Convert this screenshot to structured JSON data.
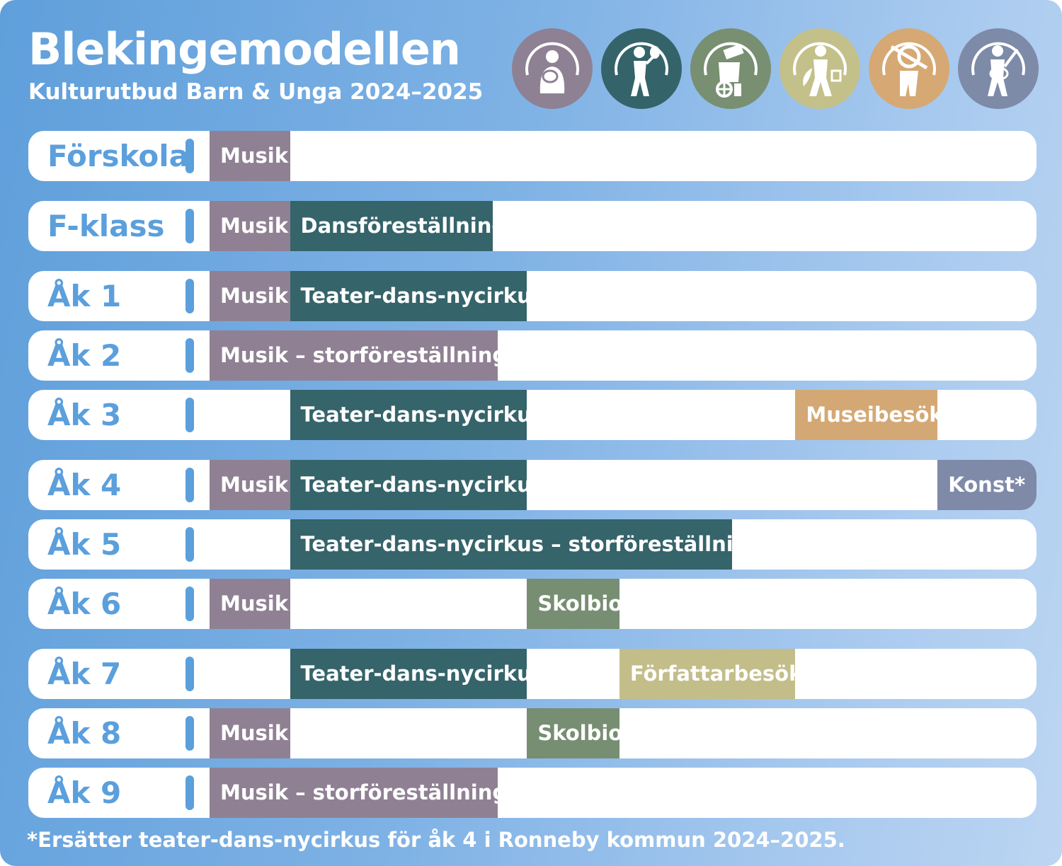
{
  "header": {
    "title": "Blekingemodellen",
    "subtitle": "Kulturutbud Barn & Unga 2024–2025"
  },
  "icons": [
    {
      "name": "musik-icon",
      "color": "#8e8193"
    },
    {
      "name": "teater-icon",
      "color": "#34636a"
    },
    {
      "name": "film-icon",
      "color": "#788f72"
    },
    {
      "name": "forfattare-icon",
      "color": "#c4c08a"
    },
    {
      "name": "museum-icon",
      "color": "#d6a873"
    },
    {
      "name": "konst-icon",
      "color": "#7d8aa8"
    }
  ],
  "colors": {
    "musik": "#8f8193",
    "teater": "#35646a",
    "skolbio": "#778e72",
    "forfattare": "#c3bd89",
    "museum": "#d4a874",
    "konst": "#7e8aa8",
    "label": "#5b9fdc"
  },
  "rows": [
    {
      "label": "Förskola",
      "segments": [
        {
          "text": "Musik",
          "category": "musik",
          "start": 0,
          "end": 1
        }
      ]
    },
    {
      "label": "F-klass",
      "segments": [
        {
          "text": "Musik",
          "category": "musik",
          "start": 0,
          "end": 1
        },
        {
          "text": "Dansföreställning",
          "category": "teater",
          "start": 1,
          "end": 3.52
        }
      ]
    },
    {
      "label": "Åk 1",
      "segments": [
        {
          "text": "Musik",
          "category": "musik",
          "start": 0,
          "end": 1
        },
        {
          "text": "Teater-dans-nycirkus",
          "category": "teater",
          "start": 1,
          "end": 3.95
        }
      ]
    },
    {
      "label": "Åk 2",
      "segments": [
        {
          "text": "Musik – storföreställning",
          "category": "musik",
          "start": 0,
          "end": 3.59
        }
      ]
    },
    {
      "label": "Åk 3",
      "segments": [
        {
          "text": "Teater-dans-nycirkus",
          "category": "teater",
          "start": 1,
          "end": 3.95
        },
        {
          "text": "Museibesök",
          "category": "museum",
          "start": 7.29,
          "end": 9.06
        }
      ]
    },
    {
      "label": "Åk 4",
      "segments": [
        {
          "text": "Musik",
          "category": "musik",
          "start": 0,
          "end": 1
        },
        {
          "text": "Teater-dans-nycirkus",
          "category": "teater",
          "start": 1,
          "end": 3.95
        },
        {
          "text": "Konst*",
          "category": "konst",
          "start": 9.06,
          "end": 10.3
        }
      ]
    },
    {
      "label": "Åk 5",
      "segments": [
        {
          "text": "Teater-dans-nycirkus – storföreställning",
          "category": "teater",
          "start": 1,
          "end": 6.5
        }
      ]
    },
    {
      "label": "Åk 6",
      "segments": [
        {
          "text": "Musik",
          "category": "musik",
          "start": 0,
          "end": 1
        },
        {
          "text": "Skolbio",
          "category": "skolbio",
          "start": 3.95,
          "end": 5.1
        }
      ]
    },
    {
      "label": "Åk 7",
      "segments": [
        {
          "text": "Teater-dans-nycirkus",
          "category": "teater",
          "start": 1,
          "end": 3.95
        },
        {
          "text": "Författarbesök",
          "category": "forfattare",
          "start": 5.1,
          "end": 7.29
        }
      ]
    },
    {
      "label": "Åk 8",
      "segments": [
        {
          "text": "Musik",
          "category": "musik",
          "start": 0,
          "end": 1
        },
        {
          "text": "Skolbio",
          "category": "skolbio",
          "start": 3.95,
          "end": 5.1
        }
      ]
    },
    {
      "label": "Åk 9",
      "segments": [
        {
          "text": "Musik – storföreställning",
          "category": "musik",
          "start": 0,
          "end": 3.59
        }
      ]
    }
  ],
  "footnote": "*Ersätter teater-dans-nycirkus för åk 4 i Ronneby kommun 2024–2025."
}
